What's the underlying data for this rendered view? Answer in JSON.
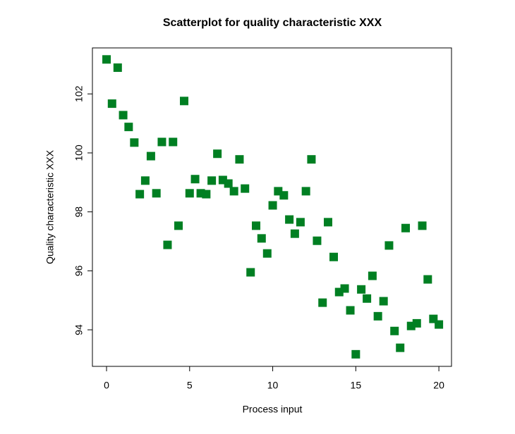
{
  "chart_data": {
    "type": "scatter",
    "title": "Scatterplot for quality characteristic XXX",
    "x_label": "Process input",
    "y_label": "Quality characteristic XXX",
    "color": "#007f22",
    "xlim": [
      -0.85,
      20.76
    ],
    "ylim": [
      92.76,
      103.56
    ],
    "xticks": [
      0,
      5,
      10,
      15,
      20
    ],
    "yticks": [
      94,
      96,
      98,
      100,
      102
    ],
    "x": [
      0,
      0.33,
      0.67,
      1,
      1.33,
      1.67,
      2,
      2.33,
      2.67,
      3,
      3.33,
      3.67,
      4,
      4.33,
      4.67,
      5,
      5.33,
      5.67,
      6,
      6.33,
      6.67,
      7,
      7.33,
      7.67,
      8,
      8.33,
      8.67,
      9,
      9.33,
      9.67,
      10,
      10.33,
      10.67,
      11,
      11.33,
      11.67,
      12,
      12.33,
      12.67,
      13,
      13.33,
      13.67,
      14,
      14.33,
      14.67,
      15,
      15.33,
      15.67,
      16,
      16.33,
      16.67,
      17,
      17.33,
      17.67,
      18,
      18.33,
      18.67,
      19,
      19.33,
      19.67,
      20
    ],
    "values": [
      103.17,
      101.67,
      102.89,
      101.28,
      100.88,
      100.35,
      98.6,
      99.06,
      99.89,
      98.63,
      100.37,
      96.88,
      100.37,
      97.53,
      101.76,
      98.63,
      99.11,
      98.63,
      98.6,
      99.06,
      99.97,
      99.08,
      98.96,
      98.7,
      99.78,
      98.79,
      95.95,
      97.53,
      97.1,
      96.59,
      98.22,
      98.7,
      98.56,
      97.74,
      97.26,
      97.65,
      98.7,
      99.78,
      97.02,
      94.92,
      97.65,
      96.47,
      95.28,
      95.4,
      94.66,
      93.17,
      95.37,
      95.06,
      95.83,
      94.46,
      94.97,
      96.86,
      93.96,
      93.39,
      97.45,
      94.13,
      94.22,
      97.53,
      95.71,
      94.37,
      94.18
    ]
  }
}
